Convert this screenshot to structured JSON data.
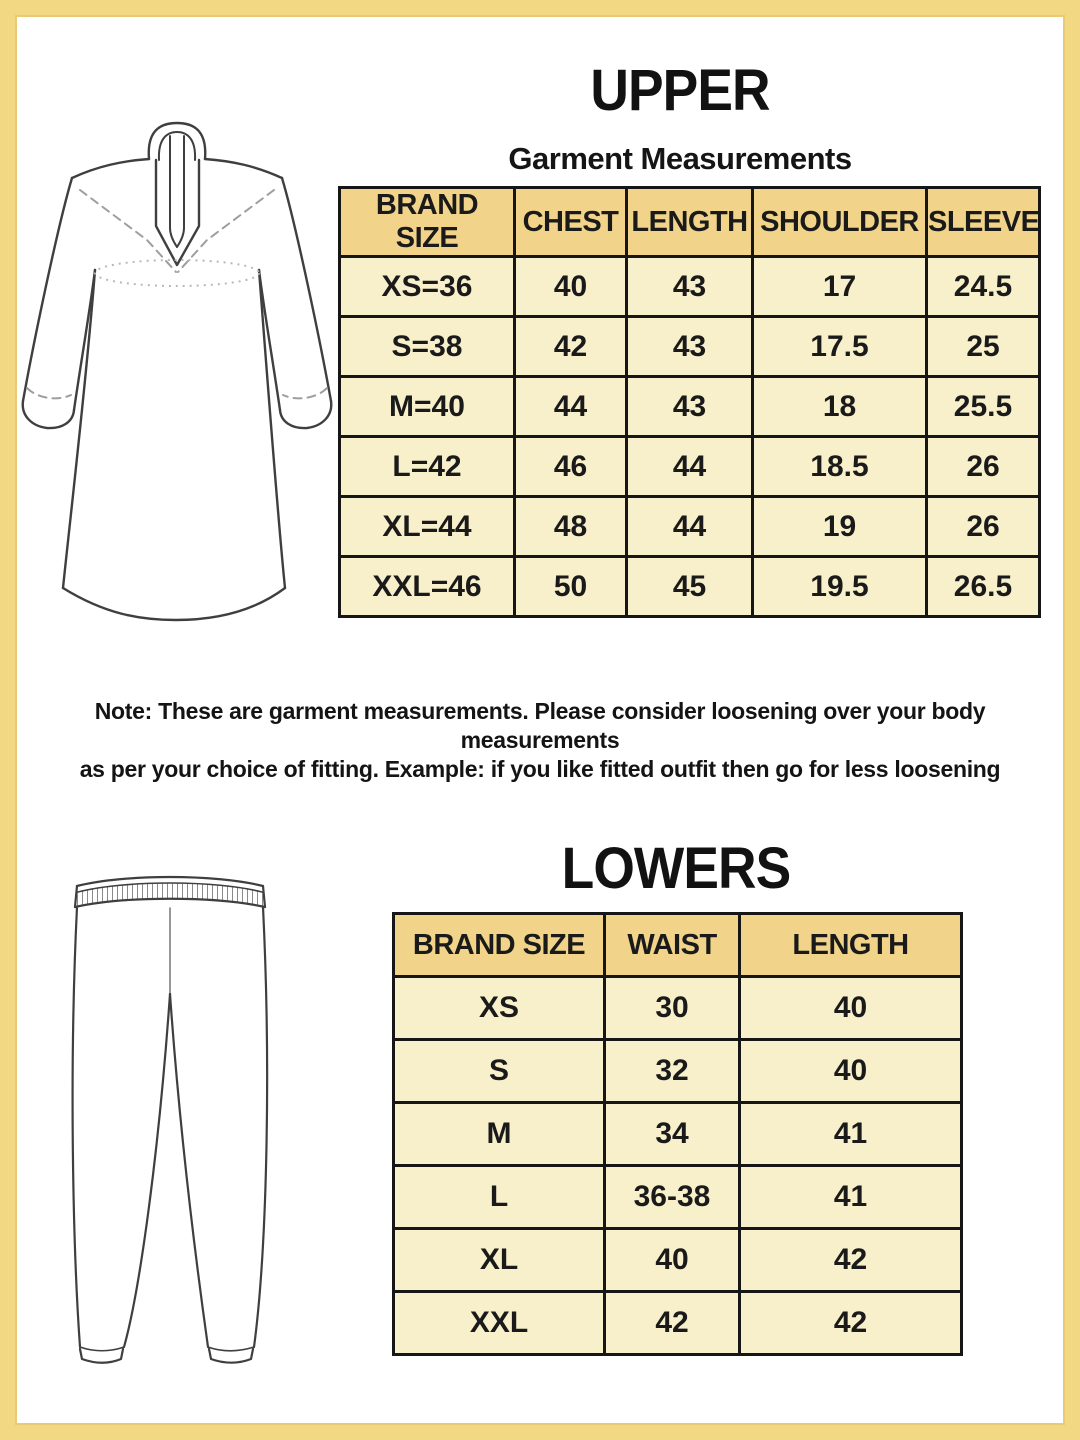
{
  "page": {
    "background": "#ffffff",
    "frame_color": "#f3d884",
    "frame_inner_line": "#e9ca72"
  },
  "colors": {
    "header_cell": "#f1d489",
    "data_cell": "#f8efcb",
    "table_border": "#161616",
    "text": "#1a1a1a",
    "sketch_stroke": "#3f3f3f",
    "sketch_dashed": "#9e9e9e"
  },
  "upper": {
    "title": "UPPER",
    "subtitle": "Garment Measurements",
    "table": {
      "headers": [
        "BRAND SIZE",
        "CHEST",
        "LENGTH",
        "SHOULDER",
        "SLEEVE"
      ],
      "rows": [
        [
          "XS=36",
          "40",
          "43",
          "17",
          "24.5"
        ],
        [
          "S=38",
          "42",
          "43",
          "17.5",
          "25"
        ],
        [
          "M=40",
          "44",
          "43",
          "18",
          "25.5"
        ],
        [
          "L=42",
          "46",
          "44",
          "18.5",
          "26"
        ],
        [
          "XL=44",
          "48",
          "44",
          "19",
          "26"
        ],
        [
          "XXL=46",
          "50",
          "45",
          "19.5",
          "26.5"
        ]
      ]
    },
    "note_line1": "Note: These are garment measurements. Please consider loosening over your body measurements",
    "note_line2": "as per your choice of fitting. Example: if you like fitted outfit then go for less loosening"
  },
  "lowers": {
    "title": "LOWERS",
    "table": {
      "headers": [
        "BRAND SIZE",
        "WAIST",
        "LENGTH"
      ],
      "rows": [
        [
          "XS",
          "30",
          "40"
        ],
        [
          "S",
          "32",
          "40"
        ],
        [
          "M",
          "34",
          "41"
        ],
        [
          "L",
          "36-38",
          "41"
        ],
        [
          "XL",
          "40",
          "42"
        ],
        [
          "XXL",
          "42",
          "42"
        ]
      ]
    }
  },
  "illustrations": {
    "kurta": "kurta-line-drawing",
    "pants": "pants-line-drawing"
  }
}
